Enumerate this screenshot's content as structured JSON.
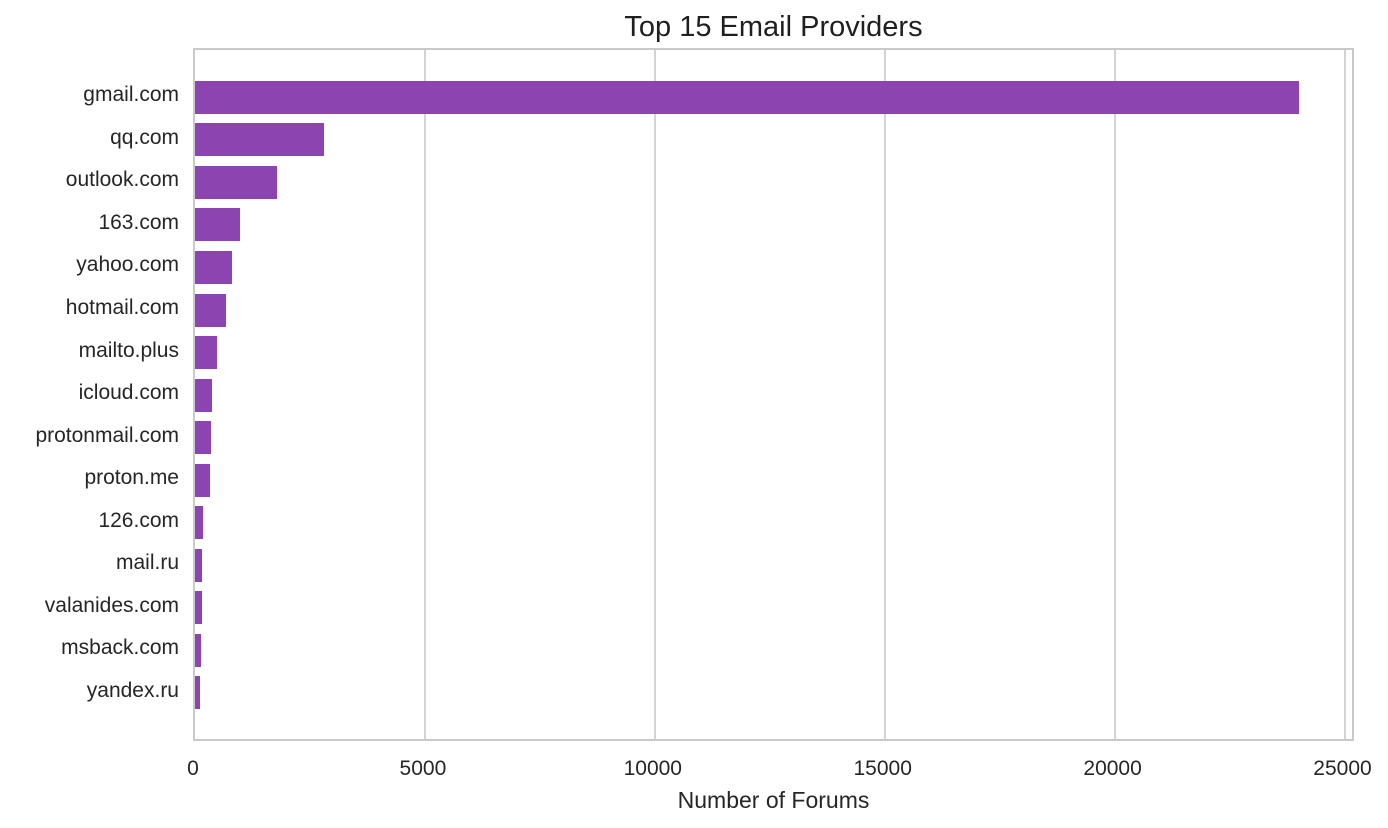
{
  "chart_data": {
    "type": "bar",
    "orientation": "horizontal",
    "title": "Top 15 Email Providers",
    "xlabel": "Number of Forums",
    "ylabel": "",
    "categories": [
      "gmail.com",
      "qq.com",
      "outlook.com",
      "163.com",
      "yahoo.com",
      "hotmail.com",
      "mailto.plus",
      "icloud.com",
      "protonmail.com",
      "proton.me",
      "126.com",
      "mail.ru",
      "valanides.com",
      "msback.com",
      "yandex.ru"
    ],
    "values": [
      24000,
      2800,
      1790,
      985,
      795,
      680,
      470,
      370,
      340,
      325,
      180,
      155,
      150,
      120,
      110
    ],
    "xticks": [
      0,
      5000,
      10000,
      15000,
      20000,
      25000
    ],
    "xlim": [
      0,
      25250
    ],
    "grid": true,
    "legend": false,
    "colors": {
      "bar": "#8c44b0",
      "grid": "#d4d4d4",
      "text": "#262626",
      "background": "#ffffff"
    }
  }
}
